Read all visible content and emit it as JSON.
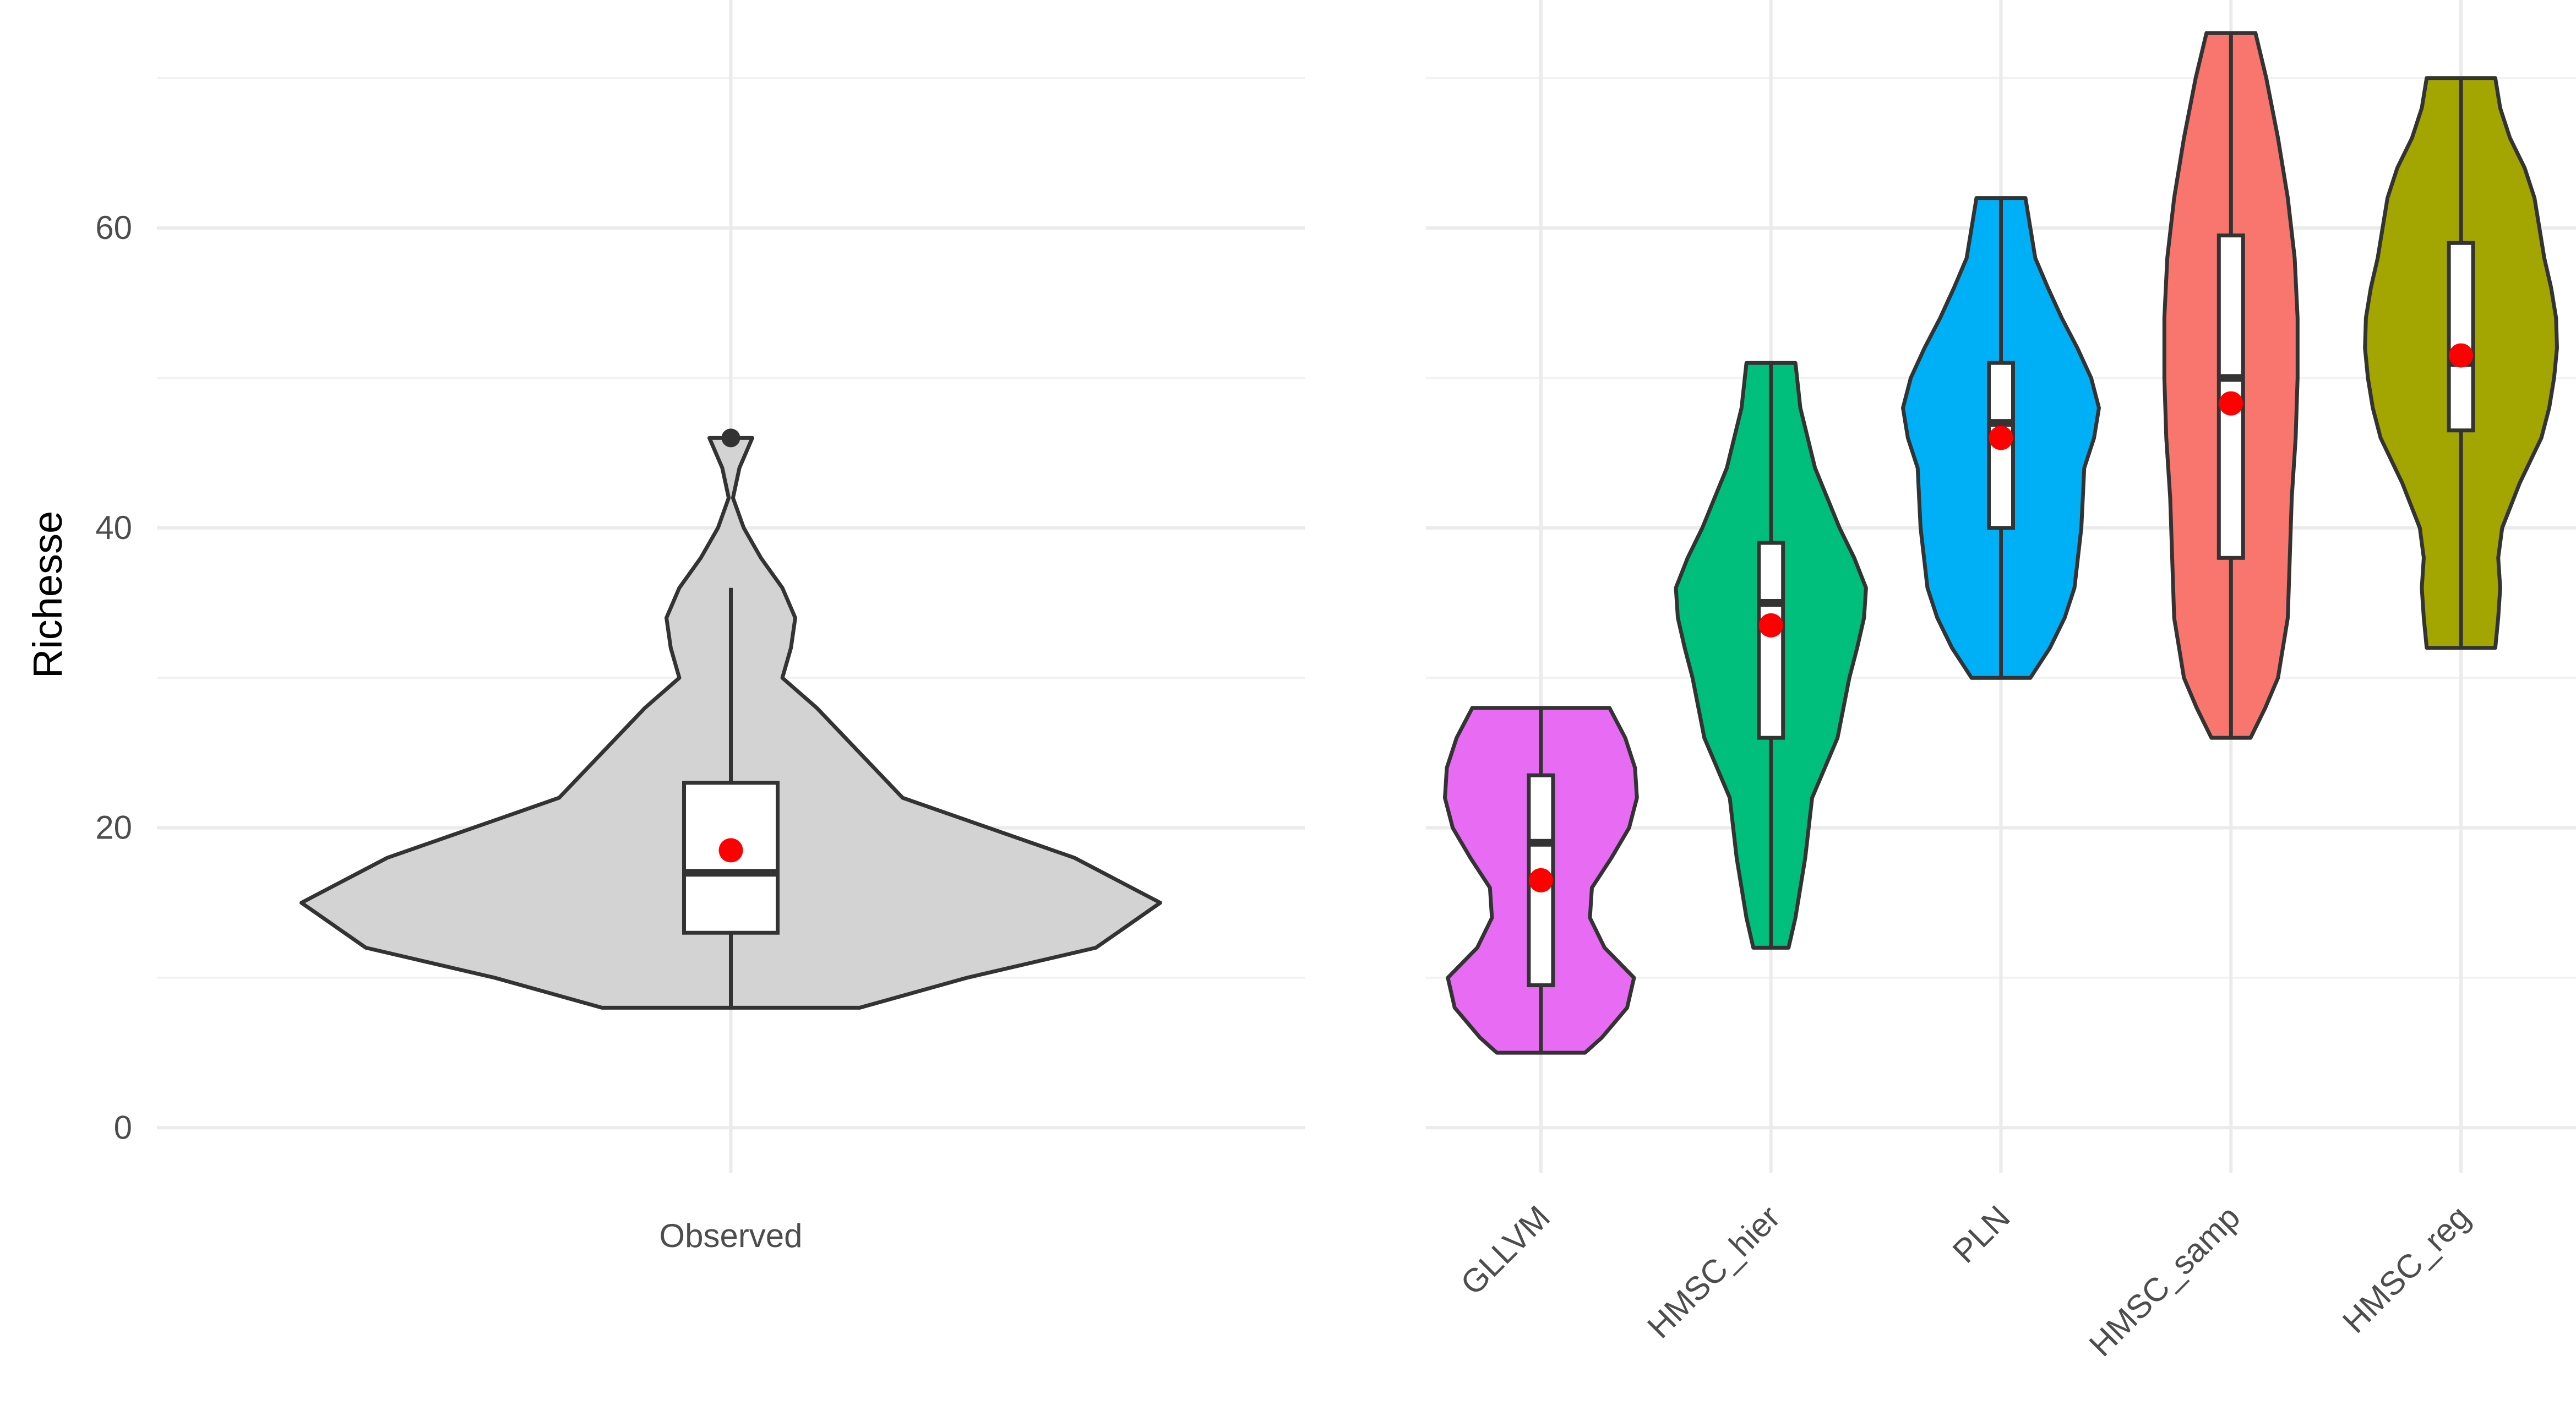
{
  "chart_data": [
    {
      "type": "violin",
      "title": "",
      "xlabel": "",
      "ylabel": "Richesse",
      "ylim": [
        -3,
        73
      ],
      "y_ticks": [
        0,
        20,
        40,
        60
      ],
      "grid": true,
      "categories": [
        "Observed"
      ],
      "series": [
        {
          "category": "Observed",
          "color": "#d3d3d3",
          "profile": [
            [
              8,
              0.3
            ],
            [
              10,
              0.55
            ],
            [
              12,
              0.85
            ],
            [
              15,
              1.0
            ],
            [
              18,
              0.8
            ],
            [
              20,
              0.6
            ],
            [
              22,
              0.4
            ],
            [
              25,
              0.3
            ],
            [
              28,
              0.2
            ],
            [
              30,
              0.12
            ],
            [
              32,
              0.14
            ],
            [
              34,
              0.15
            ],
            [
              36,
              0.12
            ],
            [
              38,
              0.07
            ],
            [
              40,
              0.03
            ],
            [
              42,
              0.005
            ],
            [
              44,
              0.02
            ],
            [
              46,
              0.05
            ]
          ],
          "box": {
            "q1": 13,
            "median": 17,
            "q3": 23,
            "whisker_low": 8,
            "whisker_high": 36
          },
          "mean": 18.5,
          "outliers": [
            46
          ]
        }
      ]
    },
    {
      "type": "violin",
      "title": "",
      "xlabel": "",
      "ylabel": "",
      "ylim": [
        -3,
        73
      ],
      "y_ticks": [
        0,
        20,
        40,
        60
      ],
      "grid": true,
      "categories": [
        "GLLVM",
        "HMSC_hier",
        "PLN",
        "HMSC_samp",
        "HMSC_reg"
      ],
      "series": [
        {
          "category": "GLLVM",
          "color": "#e76bf3",
          "profile": [
            [
              5,
              0.45
            ],
            [
              6,
              0.62
            ],
            [
              8,
              0.88
            ],
            [
              10,
              0.95
            ],
            [
              12,
              0.65
            ],
            [
              14,
              0.5
            ],
            [
              16,
              0.52
            ],
            [
              18,
              0.72
            ],
            [
              20,
              0.9
            ],
            [
              22,
              0.98
            ],
            [
              24,
              0.96
            ],
            [
              26,
              0.86
            ],
            [
              28,
              0.7
            ]
          ],
          "box": {
            "q1": 9.5,
            "median": 19,
            "q3": 23.5,
            "whisker_low": 5,
            "whisker_high": 28
          },
          "mean": 16.5,
          "outliers": []
        },
        {
          "category": "HMSC_hier",
          "color": "#00bf7d",
          "profile": [
            [
              12,
              0.18
            ],
            [
              14,
              0.25
            ],
            [
              18,
              0.35
            ],
            [
              22,
              0.42
            ],
            [
              26,
              0.68
            ],
            [
              30,
              0.8
            ],
            [
              32,
              0.88
            ],
            [
              34,
              0.95
            ],
            [
              36,
              0.97
            ],
            [
              38,
              0.85
            ],
            [
              40,
              0.7
            ],
            [
              44,
              0.45
            ],
            [
              48,
              0.3
            ],
            [
              51,
              0.25
            ]
          ],
          "box": {
            "q1": 26,
            "median": 35,
            "q3": 39,
            "whisker_low": 12,
            "whisker_high": 51
          },
          "mean": 33.5,
          "outliers": []
        },
        {
          "category": "PLN",
          "color": "#00b0f6",
          "profile": [
            [
              30,
              0.3
            ],
            [
              32,
              0.5
            ],
            [
              34,
              0.65
            ],
            [
              36,
              0.75
            ],
            [
              40,
              0.82
            ],
            [
              44,
              0.85
            ],
            [
              46,
              0.95
            ],
            [
              48,
              1.0
            ],
            [
              50,
              0.92
            ],
            [
              52,
              0.78
            ],
            [
              54,
              0.62
            ],
            [
              56,
              0.48
            ],
            [
              58,
              0.35
            ],
            [
              60,
              0.3
            ],
            [
              62,
              0.25
            ]
          ],
          "box": {
            "q1": 40,
            "median": 47,
            "q3": 51,
            "whisker_low": 30,
            "whisker_high": 62
          },
          "mean": 46,
          "outliers": []
        },
        {
          "category": "HMSC_samp",
          "color": "#f8766d",
          "profile": [
            [
              26,
              0.2
            ],
            [
              28,
              0.35
            ],
            [
              30,
              0.48
            ],
            [
              34,
              0.58
            ],
            [
              38,
              0.6
            ],
            [
              42,
              0.62
            ],
            [
              46,
              0.66
            ],
            [
              50,
              0.68
            ],
            [
              54,
              0.68
            ],
            [
              58,
              0.65
            ],
            [
              62,
              0.58
            ],
            [
              66,
              0.48
            ],
            [
              70,
              0.36
            ],
            [
              73,
              0.25
            ]
          ],
          "box": {
            "q1": 38,
            "median": 50,
            "q3": 59.5,
            "whisker_low": 26,
            "whisker_high": 73
          },
          "mean": 48.3,
          "outliers": []
        },
        {
          "category": "HMSC_reg",
          "color": "#a3a500",
          "profile": [
            [
              32,
              0.35
            ],
            [
              34,
              0.38
            ],
            [
              36,
              0.4
            ],
            [
              38,
              0.38
            ],
            [
              40,
              0.42
            ],
            [
              43,
              0.6
            ],
            [
              46,
              0.82
            ],
            [
              48,
              0.9
            ],
            [
              50,
              0.95
            ],
            [
              52,
              0.98
            ],
            [
              54,
              0.97
            ],
            [
              56,
              0.92
            ],
            [
              58,
              0.85
            ],
            [
              60,
              0.8
            ],
            [
              62,
              0.75
            ],
            [
              64,
              0.65
            ],
            [
              66,
              0.5
            ],
            [
              68,
              0.4
            ],
            [
              70,
              0.35
            ]
          ],
          "box": {
            "q1": 46.5,
            "median": 51,
            "q3": 59,
            "whisker_low": 32,
            "whisker_high": 70
          },
          "mean": 51.5,
          "outliers": []
        }
      ]
    }
  ]
}
